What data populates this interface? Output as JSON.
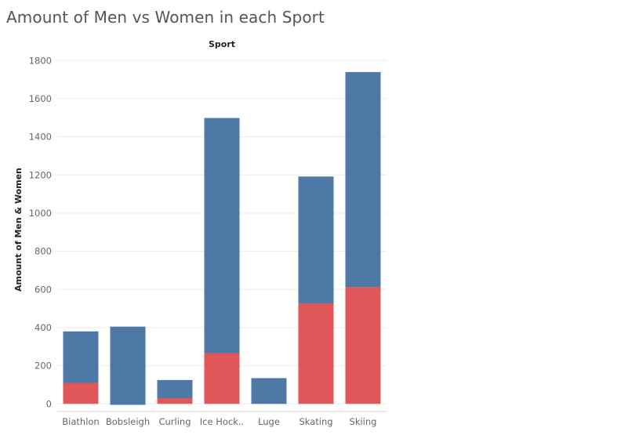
{
  "title": "Amount of Men vs Women in each Sport",
  "chart_data": {
    "type": "bar",
    "stacked": true,
    "title": "Amount of Men vs Women in each Sport",
    "column_header": "Sport",
    "xlabel": "",
    "ylabel": "Amount of Men & Women",
    "ylim": [
      -40,
      1830
    ],
    "yticks": [
      0,
      200,
      400,
      600,
      800,
      1000,
      1200,
      1400,
      1600,
      1800
    ],
    "categories": [
      "Biathlon",
      "Bobsleigh",
      "Curling",
      "Ice Hock..",
      "Luge",
      "Skating",
      "Skiing"
    ],
    "series": [
      {
        "values": [
          110,
          -5,
          30,
          266,
          0,
          527,
          612
        ],
        "color": "#e15759"
      },
      {
        "values": [
          270,
          410,
          95,
          1233,
          135,
          665,
          1128
        ],
        "color": "#4e79a7"
      }
    ],
    "totals": [
      380,
      405,
      125,
      1499,
      135,
      1192,
      1740
    ],
    "grid": true,
    "legend": "none"
  }
}
